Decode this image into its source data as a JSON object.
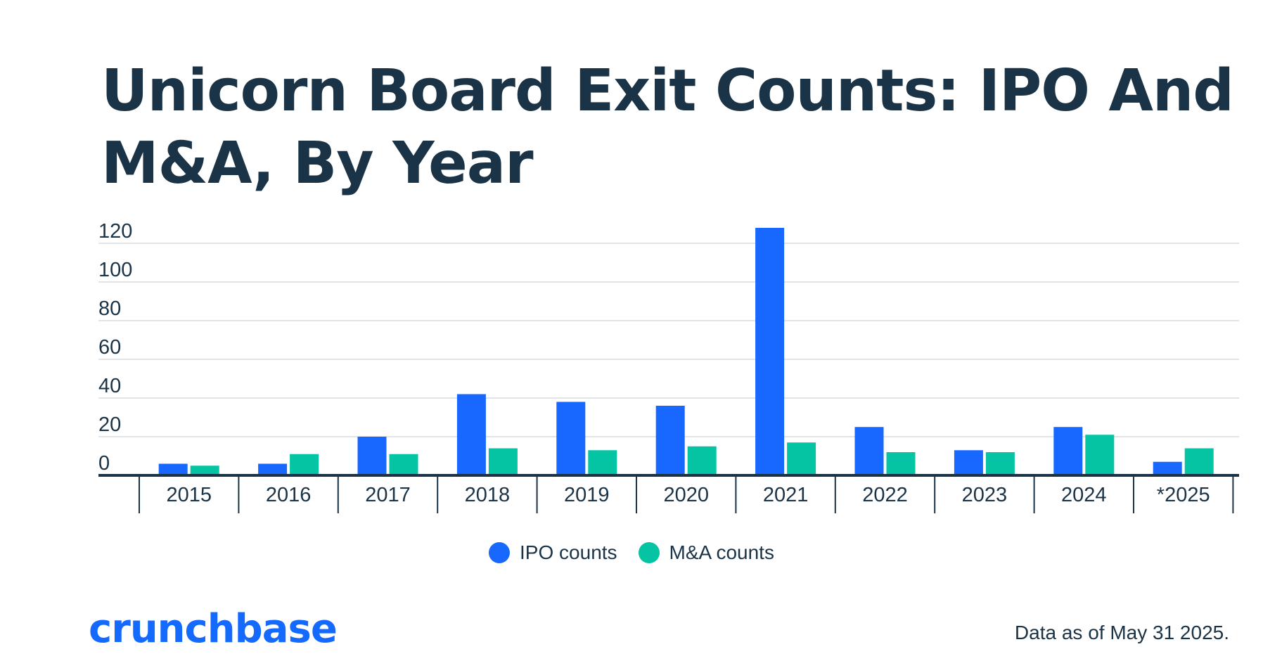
{
  "title": "Unicorn Board Exit Counts: IPO And M&A, By Year",
  "footer": {
    "logo_text": "crunchbase",
    "note": "Data as of May 31 2025."
  },
  "colors": {
    "ipo": "#1867ff",
    "ma": "#04c4a4",
    "text": "#1b3346",
    "grid": "#e2e4e6",
    "axis": "#1b3346"
  },
  "chart_data": {
    "type": "bar",
    "title": "Unicorn Board Exit Counts: IPO And M&A, By Year",
    "xlabel": "",
    "ylabel": "",
    "categories": [
      "2015",
      "2016",
      "2017",
      "2018",
      "2019",
      "2020",
      "2021",
      "2022",
      "2023",
      "2024",
      "*2025"
    ],
    "series": [
      {
        "name": "IPO counts",
        "values": [
          6,
          6,
          20,
          42,
          38,
          36,
          128,
          25,
          13,
          25,
          7
        ]
      },
      {
        "name": "M&A counts",
        "values": [
          5,
          11,
          11,
          14,
          13,
          15,
          17,
          12,
          12,
          21,
          14
        ]
      }
    ],
    "ylim": [
      0,
      120
    ],
    "yticks": [
      0,
      20,
      40,
      60,
      80,
      100,
      120
    ],
    "grid": true,
    "legend_position": "bottom-center"
  }
}
